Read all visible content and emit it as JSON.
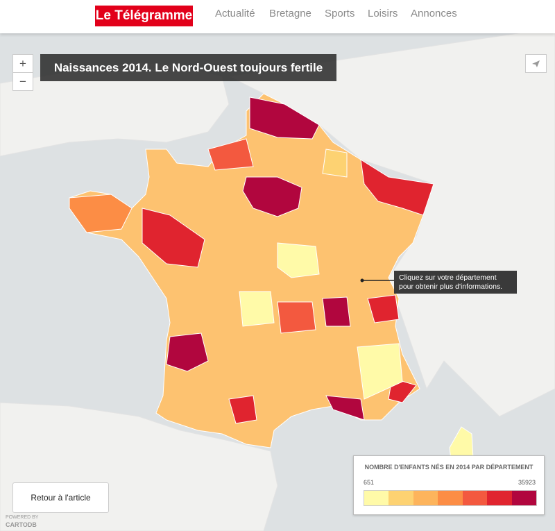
{
  "header": {
    "logo": "Le Télégramme",
    "nav": [
      "Actualité",
      "Bretagne",
      "Sports",
      "Loisirs",
      "Annonces"
    ]
  },
  "map": {
    "title": "Naissances 2014. Le Nord-Ouest toujours fertile",
    "zoom_in": "+",
    "zoom_out": "−",
    "tooltip": [
      "Cliquez sur votre département",
      "pour obtenir plus d'informations."
    ]
  },
  "legend": {
    "title": "NOMBRE D'ENFANTS NÉS EN 2014 PAR DÉPARTEMENT",
    "min": 651,
    "max": 35923,
    "colors": [
      "#fffaa8",
      "#fdd272",
      "#fdb45c",
      "#fc8d45",
      "#f3593f",
      "#e0242f",
      "#b1063e"
    ]
  },
  "button": "Retour à l'article",
  "attribution": {
    "powered": "POWERED BY",
    "brand": "CARTODB"
  }
}
